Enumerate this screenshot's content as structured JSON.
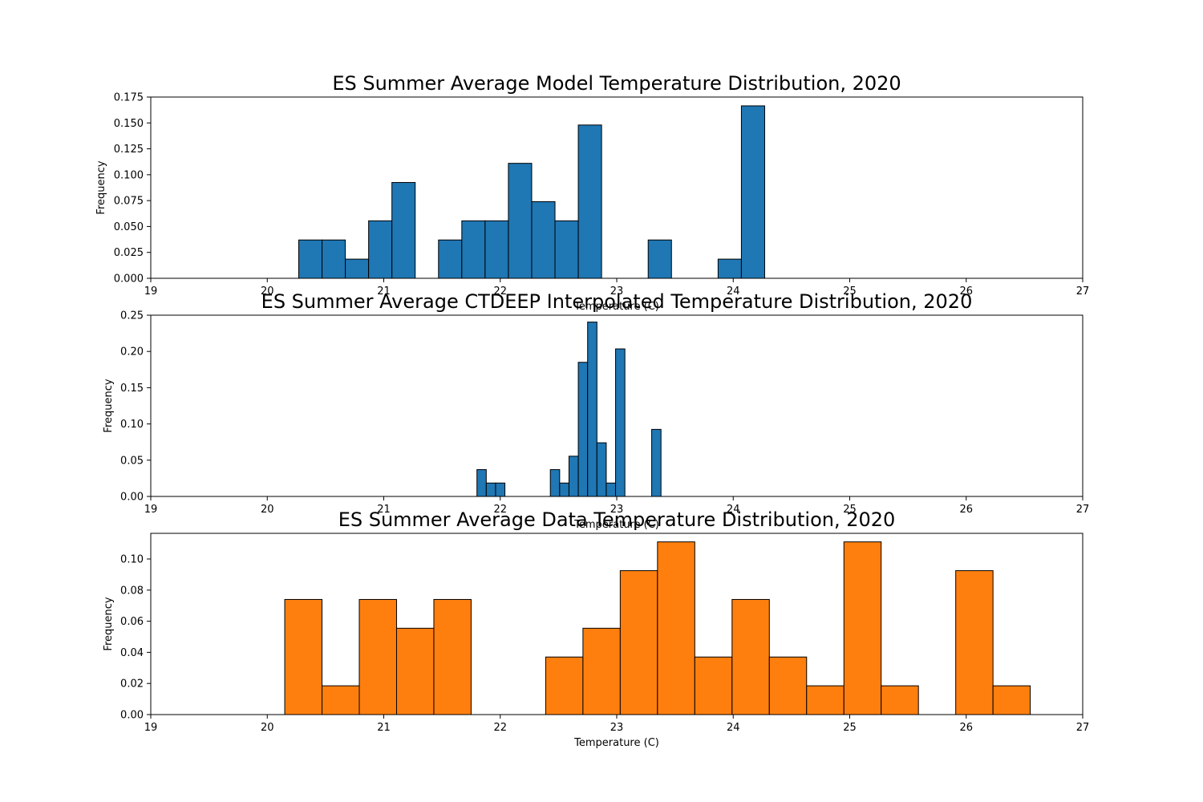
{
  "chart_data": [
    {
      "type": "bar",
      "title": "ES Summer Average Model Temperature Distribution, 2020",
      "xlabel": "Temperature (C)",
      "ylabel": "Frequency",
      "xlim": [
        19,
        27
      ],
      "ylim": [
        0,
        0.175
      ],
      "xticks": [
        19,
        20,
        21,
        22,
        23,
        24,
        25,
        26,
        27
      ],
      "yticks": [
        0,
        0.025,
        0.05,
        0.075,
        0.1,
        0.125,
        0.15,
        0.175
      ],
      "ytick_labels": [
        "0.000",
        "0.025",
        "0.050",
        "0.075",
        "0.100",
        "0.125",
        "0.150",
        "0.175"
      ],
      "color": "#1f77b4",
      "grid": false,
      "bins": [
        {
          "x0": 20.27,
          "x1": 20.47,
          "y": 0.037
        },
        {
          "x0": 20.47,
          "x1": 20.67,
          "y": 0.037
        },
        {
          "x0": 20.67,
          "x1": 20.87,
          "y": 0.0185
        },
        {
          "x0": 20.87,
          "x1": 21.07,
          "y": 0.0555
        },
        {
          "x0": 21.07,
          "x1": 21.27,
          "y": 0.0925
        },
        {
          "x0": 21.47,
          "x1": 21.67,
          "y": 0.037
        },
        {
          "x0": 21.67,
          "x1": 21.87,
          "y": 0.0555
        },
        {
          "x0": 21.87,
          "x1": 22.07,
          "y": 0.0555
        },
        {
          "x0": 22.07,
          "x1": 22.27,
          "y": 0.111
        },
        {
          "x0": 22.27,
          "x1": 22.47,
          "y": 0.074
        },
        {
          "x0": 22.47,
          "x1": 22.67,
          "y": 0.0555
        },
        {
          "x0": 22.67,
          "x1": 22.87,
          "y": 0.148
        },
        {
          "x0": 23.27,
          "x1": 23.47,
          "y": 0.037
        },
        {
          "x0": 23.87,
          "x1": 24.07,
          "y": 0.0185
        },
        {
          "x0": 24.07,
          "x1": 24.27,
          "y": 0.1665
        }
      ]
    },
    {
      "type": "bar",
      "title": "ES Summer Average CTDEEP Interpolated Temperature Distribution, 2020",
      "xlabel": "Temperature (C)",
      "ylabel": "Frequency",
      "xlim": [
        19,
        27
      ],
      "ylim": [
        0,
        0.25
      ],
      "xticks": [
        19,
        20,
        21,
        22,
        23,
        24,
        25,
        26,
        27
      ],
      "yticks": [
        0,
        0.05,
        0.1,
        0.15,
        0.2,
        0.25
      ],
      "ytick_labels": [
        "0.00",
        "0.05",
        "0.10",
        "0.15",
        "0.20",
        "0.25"
      ],
      "color": "#1f77b4",
      "grid": false,
      "bins": [
        {
          "x0": 21.8,
          "x1": 21.88,
          "y": 0.037
        },
        {
          "x0": 21.88,
          "x1": 21.96,
          "y": 0.0185
        },
        {
          "x0": 21.96,
          "x1": 22.04,
          "y": 0.0185
        },
        {
          "x0": 22.43,
          "x1": 22.51,
          "y": 0.037
        },
        {
          "x0": 22.51,
          "x1": 22.59,
          "y": 0.0185
        },
        {
          "x0": 22.59,
          "x1": 22.67,
          "y": 0.0555
        },
        {
          "x0": 22.67,
          "x1": 22.75,
          "y": 0.185
        },
        {
          "x0": 22.75,
          "x1": 22.83,
          "y": 0.2405
        },
        {
          "x0": 22.83,
          "x1": 22.91,
          "y": 0.074
        },
        {
          "x0": 22.91,
          "x1": 22.99,
          "y": 0.0185
        },
        {
          "x0": 22.99,
          "x1": 23.07,
          "y": 0.2035
        },
        {
          "x0": 23.3,
          "x1": 23.38,
          "y": 0.0925
        }
      ]
    },
    {
      "type": "bar",
      "title": "ES Summer Average Data Temperature Distribution, 2020",
      "xlabel": "Temperature (C)",
      "ylabel": "Frequency",
      "xlim": [
        19,
        27
      ],
      "ylim": [
        0,
        0.1165
      ],
      "xticks": [
        19,
        20,
        21,
        22,
        23,
        24,
        25,
        26,
        27
      ],
      "yticks": [
        0,
        0.02,
        0.04,
        0.06,
        0.08,
        0.1
      ],
      "ytick_labels": [
        "0.00",
        "0.02",
        "0.04",
        "0.06",
        "0.08",
        "0.10"
      ],
      "color": "#ff7f0e",
      "grid": false,
      "bins": [
        {
          "x0": 20.15,
          "x1": 20.47,
          "y": 0.074
        },
        {
          "x0": 20.47,
          "x1": 20.79,
          "y": 0.0185
        },
        {
          "x0": 20.79,
          "x1": 21.11,
          "y": 0.074
        },
        {
          "x0": 21.11,
          "x1": 21.43,
          "y": 0.0555
        },
        {
          "x0": 21.43,
          "x1": 21.75,
          "y": 0.074
        },
        {
          "x0": 22.39,
          "x1": 22.71,
          "y": 0.037
        },
        {
          "x0": 22.71,
          "x1": 23.03,
          "y": 0.0555
        },
        {
          "x0": 23.03,
          "x1": 23.35,
          "y": 0.0925
        },
        {
          "x0": 23.35,
          "x1": 23.67,
          "y": 0.111
        },
        {
          "x0": 23.67,
          "x1": 23.99,
          "y": 0.037
        },
        {
          "x0": 23.99,
          "x1": 24.31,
          "y": 0.074
        },
        {
          "x0": 24.31,
          "x1": 24.63,
          "y": 0.037
        },
        {
          "x0": 24.63,
          "x1": 24.95,
          "y": 0.0185
        },
        {
          "x0": 24.95,
          "x1": 25.27,
          "y": 0.111
        },
        {
          "x0": 25.27,
          "x1": 25.59,
          "y": 0.0185
        },
        {
          "x0": 25.91,
          "x1": 26.23,
          "y": 0.0925
        },
        {
          "x0": 26.23,
          "x1": 26.55,
          "y": 0.0185
        }
      ]
    }
  ]
}
